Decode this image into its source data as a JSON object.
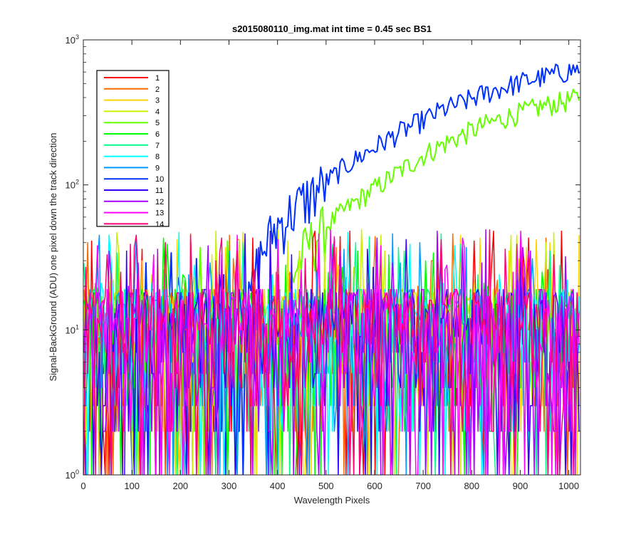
{
  "chart_data": {
    "type": "line",
    "title": "s2015080110_img.mat int time = 0.45 sec   BS1",
    "xlabel": "Wavelength Pixels",
    "ylabel": "Signal-BackGround (ADU) one pixel down the track direction",
    "xlim": [
      0,
      1024
    ],
    "ylim": [
      1,
      1000
    ],
    "yscale": "log",
    "grid": false,
    "legend_position": "top-left",
    "x_ticks": [
      "0",
      "100",
      "200",
      "300",
      "400",
      "500",
      "600",
      "700",
      "800",
      "900",
      "1000"
    ],
    "y_ticks": [
      {
        "base": "10",
        "exp": "0"
      },
      {
        "base": "10",
        "exp": "1"
      },
      {
        "base": "10",
        "exp": "2"
      },
      {
        "base": "10",
        "exp": "3"
      }
    ],
    "noise_band": {
      "typical_low": 2,
      "typical_high": 20,
      "peak_max": 50
    },
    "series": [
      {
        "name": "1",
        "color": "#ff0000",
        "kind": "noise"
      },
      {
        "name": "2",
        "color": "#ff6a00",
        "kind": "noise"
      },
      {
        "name": "3",
        "color": "#ffd400",
        "kind": "noise"
      },
      {
        "name": "4",
        "color": "#ccf000",
        "kind": "noise"
      },
      {
        "name": "5",
        "color": "#66ff00",
        "kind": "signal",
        "x": [
          380,
          420,
          460,
          500,
          540,
          580,
          620,
          660,
          700,
          740,
          780,
          820,
          860,
          900,
          940,
          980,
          1024
        ],
        "values": [
          9,
          20,
          38,
          52,
          68,
          85,
          105,
          130,
          160,
          190,
          220,
          255,
          285,
          315,
          345,
          370,
          400
        ]
      },
      {
        "name": "6",
        "color": "#00ff00",
        "kind": "noise"
      },
      {
        "name": "7",
        "color": "#00ff8c",
        "kind": "noise"
      },
      {
        "name": "8",
        "color": "#00ffff",
        "kind": "noise"
      },
      {
        "name": "9",
        "color": "#0099ff",
        "kind": "noise"
      },
      {
        "name": "10",
        "color": "#0030ff",
        "kind": "signal",
        "x": [
          330,
          360,
          390,
          420,
          460,
          500,
          540,
          580,
          620,
          660,
          700,
          740,
          780,
          820,
          860,
          900,
          940,
          980,
          1024
        ],
        "values": [
          10,
          30,
          48,
          62,
          82,
          105,
          135,
          165,
          200,
          240,
          280,
          330,
          370,
          420,
          465,
          510,
          550,
          590,
          640
        ]
      },
      {
        "name": "11",
        "color": "#3300ff",
        "kind": "noise"
      },
      {
        "name": "12",
        "color": "#aa00ff",
        "kind": "noise"
      },
      {
        "name": "13",
        "color": "#ff00ff",
        "kind": "noise"
      },
      {
        "name": "14",
        "color": "#ff0077",
        "kind": "noise"
      }
    ]
  }
}
